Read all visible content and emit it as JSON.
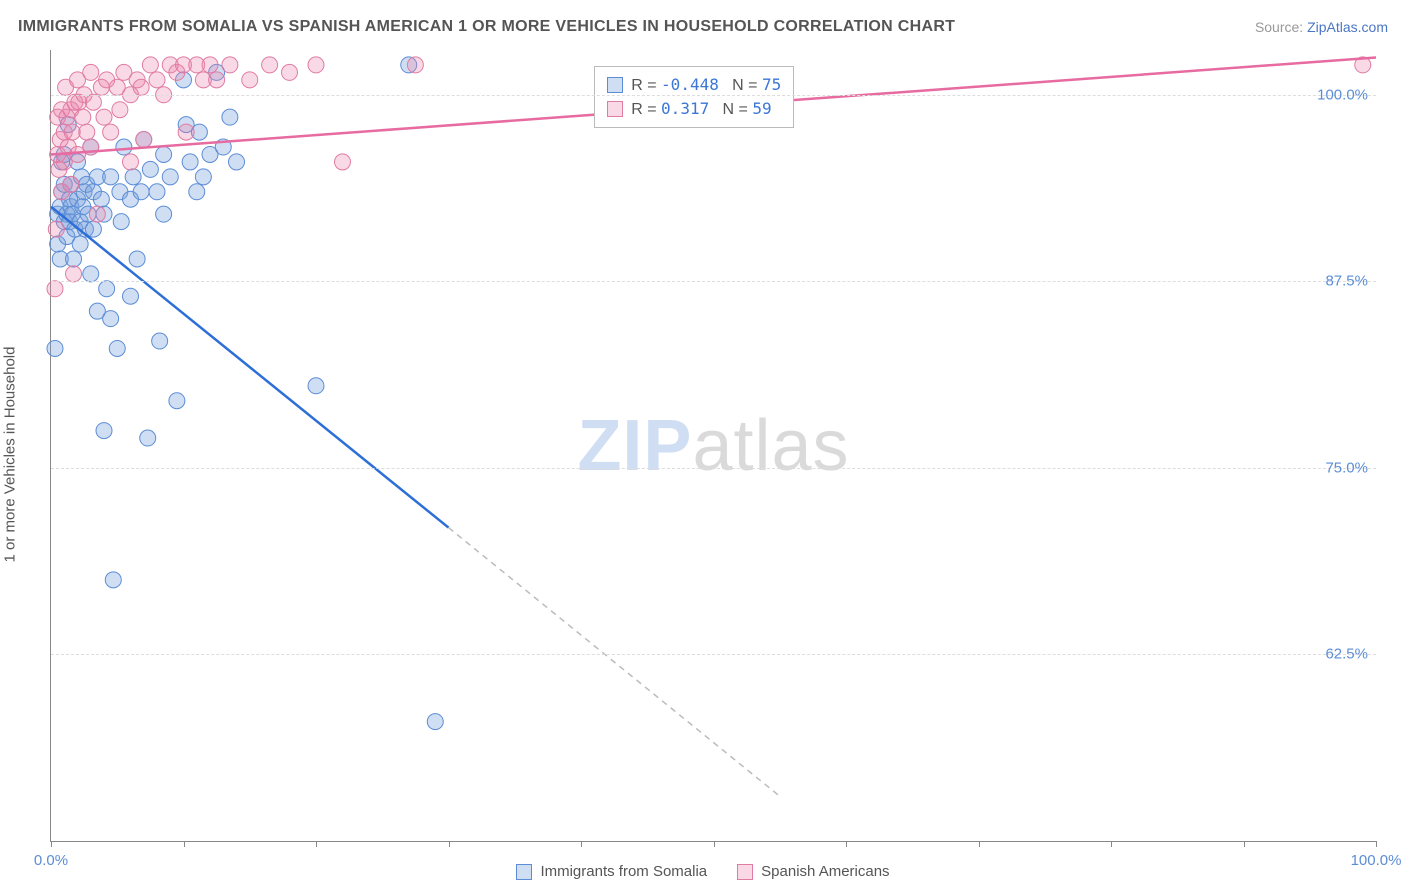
{
  "title": "IMMIGRANTS FROM SOMALIA VS SPANISH AMERICAN 1 OR MORE VEHICLES IN HOUSEHOLD CORRELATION CHART",
  "source_prefix": "Source: ",
  "source_link": "ZipAtlas.com",
  "y_axis_label": "1 or more Vehicles in Household",
  "watermark_left": "ZIP",
  "watermark_right": "atlas",
  "chart": {
    "type": "scatter",
    "xlim": [
      0,
      100
    ],
    "ylim": [
      50,
      103
    ],
    "x_ticks": [
      0,
      10,
      20,
      30,
      40,
      50,
      60,
      70,
      80,
      90,
      100
    ],
    "x_tick_labels": {
      "0": "0.0%",
      "100": "100.0%"
    },
    "y_ticks": [
      62.5,
      75.0,
      87.5,
      100.0
    ],
    "y_tick_labels": [
      "62.5%",
      "75.0%",
      "87.5%",
      "100.0%"
    ],
    "grid_color": "#dddddd",
    "background_color": "#ffffff",
    "colors": {
      "blue_fill": "rgba(120,160,220,0.35)",
      "blue_stroke": "#5b8dd6",
      "pink_fill": "rgba(235,130,170,0.30)",
      "pink_stroke": "#e07ba3",
      "trend_blue": "#2d6fd6",
      "trend_pink": "#e76aa0",
      "axis_color": "#888888",
      "tick_label_color": "#5b8dd6"
    },
    "marker_radius": 8,
    "series": [
      {
        "name": "Immigrants from Somalia",
        "color_key": "blue",
        "r": -0.448,
        "n": 75,
        "trend": {
          "x1": 0,
          "y1": 92.5,
          "x2_solid": 30,
          "y2_solid": 71,
          "x2_dash": 55,
          "y2_dash": 53
        },
        "points": [
          [
            0.3,
            83
          ],
          [
            0.5,
            90
          ],
          [
            0.5,
            92
          ],
          [
            0.7,
            92.5
          ],
          [
            0.7,
            89
          ],
          [
            0.8,
            93.5
          ],
          [
            0.8,
            95.5
          ],
          [
            1,
            96
          ],
          [
            1,
            94
          ],
          [
            1,
            91.5
          ],
          [
            1.2,
            92
          ],
          [
            1.2,
            90.5
          ],
          [
            1.3,
            98
          ],
          [
            1.4,
            93
          ],
          [
            1.4,
            91.5
          ],
          [
            1.5,
            94
          ],
          [
            1.5,
            92.5
          ],
          [
            1.6,
            92
          ],
          [
            1.7,
            89
          ],
          [
            1.8,
            91
          ],
          [
            2,
            93
          ],
          [
            2,
            95.5
          ],
          [
            2.2,
            91.5
          ],
          [
            2.2,
            90
          ],
          [
            2.3,
            94.5
          ],
          [
            2.4,
            92.5
          ],
          [
            2.5,
            93.5
          ],
          [
            2.6,
            91
          ],
          [
            2.7,
            94
          ],
          [
            2.8,
            92
          ],
          [
            3,
            96.5
          ],
          [
            3,
            88
          ],
          [
            3.2,
            93.5
          ],
          [
            3.2,
            91
          ],
          [
            3.5,
            94.5
          ],
          [
            3.5,
            85.5
          ],
          [
            3.8,
            93
          ],
          [
            4,
            77.5
          ],
          [
            4,
            92
          ],
          [
            4.2,
            87
          ],
          [
            4.5,
            85
          ],
          [
            4.5,
            94.5
          ],
          [
            4.7,
            67.5
          ],
          [
            5,
            83
          ],
          [
            5.2,
            93.5
          ],
          [
            5.3,
            91.5
          ],
          [
            5.5,
            96.5
          ],
          [
            6,
            93
          ],
          [
            6,
            86.5
          ],
          [
            6.2,
            94.5
          ],
          [
            6.5,
            89
          ],
          [
            6.8,
            93.5
          ],
          [
            7,
            97
          ],
          [
            7.3,
            77
          ],
          [
            7.5,
            95
          ],
          [
            8,
            93.5
          ],
          [
            8.2,
            83.5
          ],
          [
            8.5,
            92
          ],
          [
            8.5,
            96
          ],
          [
            9,
            94.5
          ],
          [
            9.5,
            79.5
          ],
          [
            10,
            101
          ],
          [
            10.2,
            98
          ],
          [
            10.5,
            95.5
          ],
          [
            11,
            93.5
          ],
          [
            11.2,
            97.5
          ],
          [
            11.5,
            94.5
          ],
          [
            12,
            96
          ],
          [
            12.5,
            101.5
          ],
          [
            13,
            96.5
          ],
          [
            13.5,
            98.5
          ],
          [
            14,
            95.5
          ],
          [
            20,
            80.5
          ],
          [
            27,
            102
          ],
          [
            29,
            58
          ]
        ]
      },
      {
        "name": "Spanish Americans",
        "color_key": "pink",
        "r": 0.317,
        "n": 59,
        "trend": {
          "x1": 0,
          "y1": 96,
          "x2_solid": 100,
          "y2_solid": 102.5,
          "x2_dash": 100,
          "y2_dash": 102.5
        },
        "points": [
          [
            0.3,
            87
          ],
          [
            0.4,
            91
          ],
          [
            0.5,
            96
          ],
          [
            0.5,
            98.5
          ],
          [
            0.6,
            95
          ],
          [
            0.7,
            97
          ],
          [
            0.8,
            93.5
          ],
          [
            0.8,
            99
          ],
          [
            1,
            97.5
          ],
          [
            1,
            95.5
          ],
          [
            1.1,
            100.5
          ],
          [
            1.2,
            98.5
          ],
          [
            1.3,
            96.5
          ],
          [
            1.5,
            99
          ],
          [
            1.5,
            94
          ],
          [
            1.6,
            97.5
          ],
          [
            1.7,
            88
          ],
          [
            1.8,
            99.5
          ],
          [
            2,
            101
          ],
          [
            2,
            96
          ],
          [
            2.1,
            99.5
          ],
          [
            2.4,
            98.5
          ],
          [
            2.5,
            100
          ],
          [
            2.7,
            97.5
          ],
          [
            3,
            101.5
          ],
          [
            3,
            96.5
          ],
          [
            3.2,
            99.5
          ],
          [
            3.5,
            92
          ],
          [
            3.8,
            100.5
          ],
          [
            4,
            98.5
          ],
          [
            4.2,
            101
          ],
          [
            4.5,
            97.5
          ],
          [
            5,
            100.5
          ],
          [
            5.2,
            99
          ],
          [
            5.5,
            101.5
          ],
          [
            6,
            100
          ],
          [
            6,
            95.5
          ],
          [
            6.5,
            101
          ],
          [
            6.8,
            100.5
          ],
          [
            7,
            97
          ],
          [
            7.5,
            102
          ],
          [
            8,
            101
          ],
          [
            8.5,
            100
          ],
          [
            9,
            102
          ],
          [
            9.5,
            101.5
          ],
          [
            10,
            102
          ],
          [
            10.2,
            97.5
          ],
          [
            11,
            102
          ],
          [
            11.5,
            101
          ],
          [
            12,
            102
          ],
          [
            12.5,
            101
          ],
          [
            13.5,
            102
          ],
          [
            15,
            101
          ],
          [
            16.5,
            102
          ],
          [
            18,
            101.5
          ],
          [
            20,
            102
          ],
          [
            22,
            95.5
          ],
          [
            27.5,
            102
          ],
          [
            99,
            102
          ]
        ]
      }
    ],
    "stat_box": {
      "left_pct": 41,
      "top_pct": 2
    },
    "bottom_legend": [
      {
        "label": "Immigrants from Somalia",
        "swatch": "blue"
      },
      {
        "label": "Spanish Americans",
        "swatch": "pink"
      }
    ]
  }
}
